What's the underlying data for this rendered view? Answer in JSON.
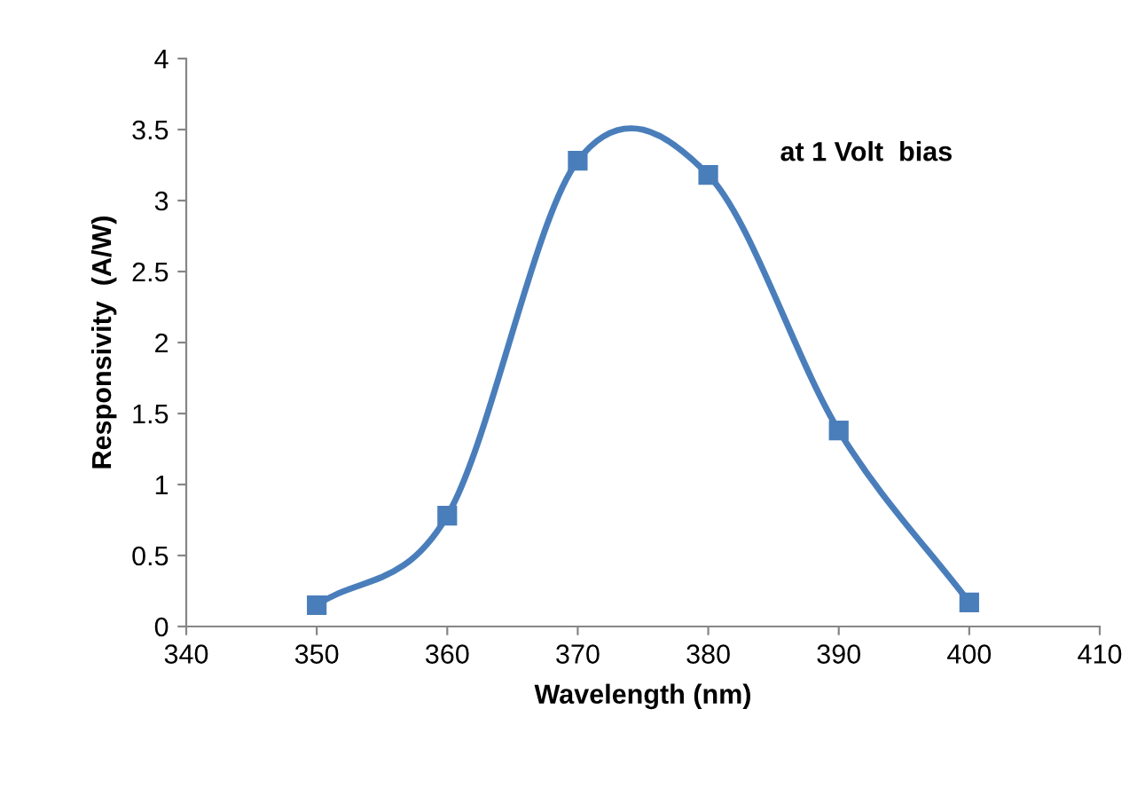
{
  "chart_data": {
    "type": "line",
    "xlabel": "Wavelength (nm)",
    "ylabel": "Responsivity  (A/W)",
    "x": [
      350,
      360,
      370,
      380,
      390,
      400
    ],
    "series": [
      {
        "color": "#4a7ebb",
        "values": [
          0.15,
          0.78,
          3.28,
          3.18,
          1.38,
          0.17
        ]
      }
    ],
    "marker": "square",
    "line_style": "solid",
    "xlim": [
      340,
      410
    ],
    "xticks": [
      340,
      350,
      360,
      370,
      380,
      390,
      400,
      410
    ],
    "ylim": [
      0,
      4
    ],
    "yticks": [
      0,
      0.5,
      1,
      1.5,
      2,
      2.5,
      3,
      3.5,
      4
    ],
    "grid": false,
    "legend": false,
    "annotations": [
      "at 1 Volt  bias"
    ]
  }
}
